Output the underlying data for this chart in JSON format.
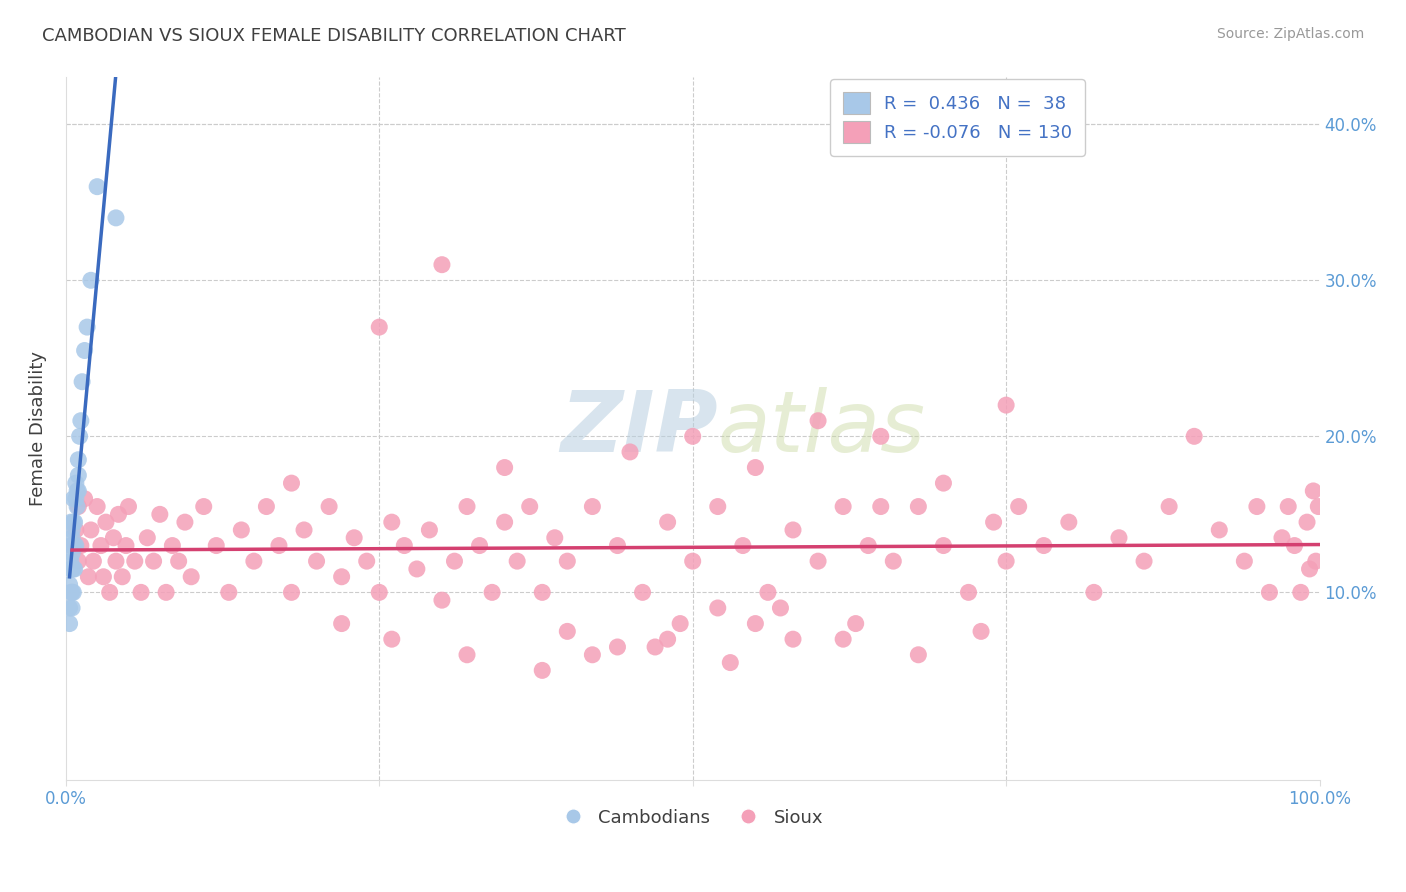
{
  "title": "CAMBODIAN VS SIOUX FEMALE DISABILITY CORRELATION CHART",
  "source": "Source: ZipAtlas.com",
  "ylabel": "Female Disability",
  "xlim": [
    0.0,
    1.0
  ],
  "ylim": [
    -0.02,
    0.43
  ],
  "ytick_vals": [
    0.0,
    0.1,
    0.2,
    0.3,
    0.4
  ],
  "ytick_labels": [
    "",
    "10.0%",
    "20.0%",
    "30.0%",
    "40.0%"
  ],
  "xtick_vals": [
    0.0,
    0.25,
    0.5,
    0.75,
    1.0
  ],
  "xtick_labels": [
    "0.0%",
    "",
    "",
    "",
    "100.0%"
  ],
  "cambodian_color": "#a8c8e8",
  "sioux_color": "#f4a0b8",
  "cambodian_line_color": "#3a6abf",
  "sioux_line_color": "#d44070",
  "r_cambodian": 0.436,
  "n_cambodian": 38,
  "r_sioux": -0.076,
  "n_sioux": 130,
  "watermark_zip": "ZIP",
  "watermark_atlas": "atlas",
  "background_color": "#ffffff",
  "grid_color": "#cccccc",
  "title_color": "#404040",
  "axis_color": "#5b9bd5",
  "legend_text_color": "#4472c4",
  "cambodian_x": [
    0.003,
    0.003,
    0.003,
    0.004,
    0.004,
    0.004,
    0.004,
    0.004,
    0.005,
    0.005,
    0.005,
    0.005,
    0.005,
    0.005,
    0.006,
    0.006,
    0.006,
    0.006,
    0.006,
    0.007,
    0.007,
    0.007,
    0.008,
    0.008,
    0.008,
    0.009,
    0.009,
    0.01,
    0.01,
    0.01,
    0.011,
    0.012,
    0.013,
    0.015,
    0.017,
    0.02,
    0.025,
    0.04
  ],
  "cambodian_y": [
    0.08,
    0.09,
    0.105,
    0.1,
    0.115,
    0.12,
    0.13,
    0.145,
    0.09,
    0.1,
    0.115,
    0.125,
    0.135,
    0.14,
    0.1,
    0.115,
    0.13,
    0.145,
    0.16,
    0.115,
    0.13,
    0.145,
    0.13,
    0.16,
    0.17,
    0.155,
    0.165,
    0.165,
    0.175,
    0.185,
    0.2,
    0.21,
    0.235,
    0.255,
    0.27,
    0.3,
    0.36,
    0.34
  ],
  "sioux_x": [
    0.005,
    0.008,
    0.01,
    0.01,
    0.012,
    0.015,
    0.018,
    0.02,
    0.022,
    0.025,
    0.028,
    0.03,
    0.032,
    0.035,
    0.038,
    0.04,
    0.042,
    0.045,
    0.048,
    0.05,
    0.055,
    0.06,
    0.065,
    0.07,
    0.075,
    0.08,
    0.085,
    0.09,
    0.095,
    0.1,
    0.11,
    0.12,
    0.13,
    0.14,
    0.15,
    0.16,
    0.17,
    0.18,
    0.19,
    0.2,
    0.21,
    0.22,
    0.23,
    0.24,
    0.25,
    0.26,
    0.27,
    0.28,
    0.29,
    0.3,
    0.31,
    0.32,
    0.33,
    0.34,
    0.35,
    0.36,
    0.37,
    0.38,
    0.39,
    0.4,
    0.42,
    0.44,
    0.46,
    0.48,
    0.5,
    0.52,
    0.54,
    0.56,
    0.58,
    0.6,
    0.62,
    0.64,
    0.65,
    0.66,
    0.68,
    0.7,
    0.72,
    0.74,
    0.75,
    0.76,
    0.78,
    0.8,
    0.82,
    0.84,
    0.86,
    0.88,
    0.9,
    0.92,
    0.94,
    0.95,
    0.96,
    0.97,
    0.975,
    0.98,
    0.985,
    0.99,
    0.992,
    0.995,
    0.997,
    0.999,
    0.18,
    0.25,
    0.35,
    0.45,
    0.5,
    0.55,
    0.6,
    0.65,
    0.7,
    0.75,
    0.52,
    0.58,
    0.63,
    0.42,
    0.38,
    0.47,
    0.53,
    0.62,
    0.68,
    0.73,
    0.55,
    0.48,
    0.57,
    0.3,
    0.22,
    0.26,
    0.32,
    0.4,
    0.44,
    0.49
  ],
  "sioux_y": [
    0.13,
    0.14,
    0.12,
    0.155,
    0.13,
    0.16,
    0.11,
    0.14,
    0.12,
    0.155,
    0.13,
    0.11,
    0.145,
    0.1,
    0.135,
    0.12,
    0.15,
    0.11,
    0.13,
    0.155,
    0.12,
    0.1,
    0.135,
    0.12,
    0.15,
    0.1,
    0.13,
    0.12,
    0.145,
    0.11,
    0.155,
    0.13,
    0.1,
    0.14,
    0.12,
    0.155,
    0.13,
    0.1,
    0.14,
    0.12,
    0.155,
    0.11,
    0.135,
    0.12,
    0.1,
    0.145,
    0.13,
    0.115,
    0.14,
    0.31,
    0.12,
    0.155,
    0.13,
    0.1,
    0.145,
    0.12,
    0.155,
    0.1,
    0.135,
    0.12,
    0.155,
    0.13,
    0.1,
    0.145,
    0.12,
    0.155,
    0.13,
    0.1,
    0.14,
    0.12,
    0.155,
    0.13,
    0.2,
    0.12,
    0.155,
    0.13,
    0.1,
    0.145,
    0.12,
    0.155,
    0.13,
    0.145,
    0.1,
    0.135,
    0.12,
    0.155,
    0.2,
    0.14,
    0.12,
    0.155,
    0.1,
    0.135,
    0.155,
    0.13,
    0.1,
    0.145,
    0.115,
    0.165,
    0.12,
    0.155,
    0.17,
    0.27,
    0.18,
    0.19,
    0.2,
    0.18,
    0.21,
    0.155,
    0.17,
    0.22,
    0.09,
    0.07,
    0.08,
    0.06,
    0.05,
    0.065,
    0.055,
    0.07,
    0.06,
    0.075,
    0.08,
    0.07,
    0.09,
    0.095,
    0.08,
    0.07,
    0.06,
    0.075,
    0.065,
    0.08
  ]
}
